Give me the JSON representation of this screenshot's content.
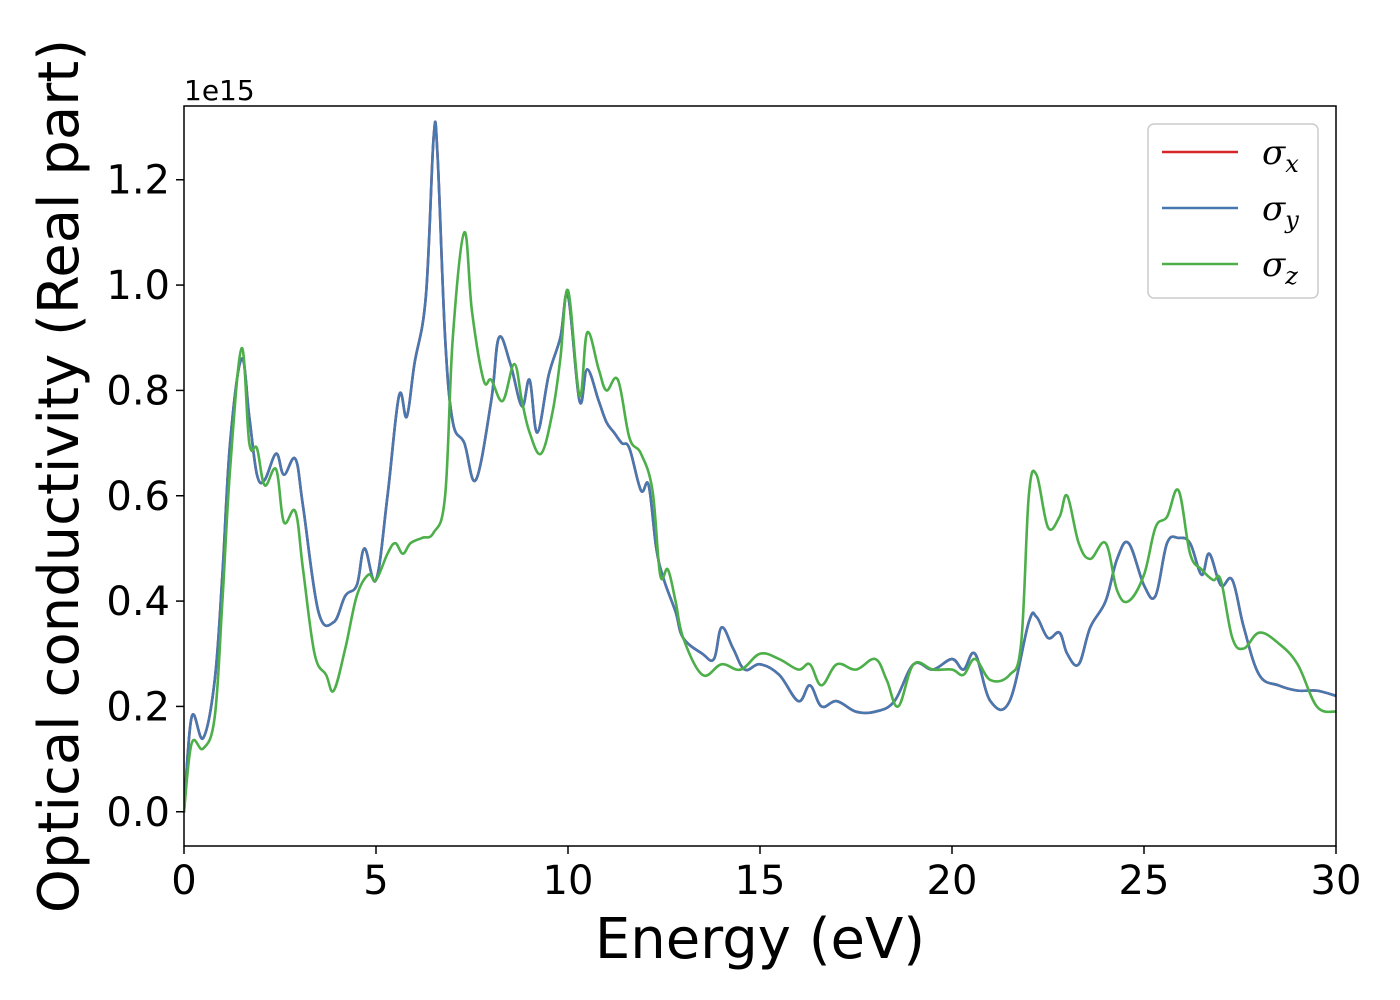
{
  "chart_data": {
    "type": "line",
    "xlabel": "Energy (eV)",
    "ylabel": "Optical conductivity (Real part)",
    "y_offset_label": "1e15",
    "y_scale": 1000000000000000.0,
    "xlim": [
      0,
      30
    ],
    "ylim": [
      -0.065,
      1.34
    ],
    "xticks": [
      0,
      5,
      10,
      15,
      20,
      25,
      30
    ],
    "xtick_labels": [
      "0",
      "5",
      "10",
      "15",
      "20",
      "25",
      "30"
    ],
    "yticks": [
      0.0,
      0.2,
      0.4,
      0.6,
      0.8,
      1.0,
      1.2
    ],
    "ytick_labels": [
      "0.0",
      "0.2",
      "0.4",
      "0.6",
      "0.8",
      "1.0",
      "1.2"
    ],
    "grid": false,
    "legend_position": "top-right",
    "series": [
      {
        "name": "σ",
        "subscript": "x",
        "color": "#d62728",
        "x": [
          0,
          0.2,
          0.5,
          0.8,
          1.0,
          1.2,
          1.5,
          1.7,
          1.9,
          2.1,
          2.4,
          2.6,
          2.9,
          3.1,
          3.5,
          3.9,
          4.2,
          4.5,
          4.7,
          5.0,
          5.3,
          5.6,
          5.8,
          6.0,
          6.3,
          6.5,
          6.6,
          6.8,
          7.0,
          7.3,
          7.6,
          8.0,
          8.2,
          8.5,
          8.8,
          9.0,
          9.2,
          9.5,
          9.8,
          10.0,
          10.3,
          10.5,
          10.8,
          11.0,
          11.2,
          11.4,
          11.6,
          11.9,
          12.1,
          12.3,
          12.5,
          12.8,
          13.0,
          13.5,
          13.8,
          14.0,
          14.3,
          14.6,
          15.0,
          15.5,
          16.0,
          16.3,
          16.6,
          17.0,
          17.5,
          18.0,
          18.5,
          19.0,
          19.5,
          20.0,
          20.3,
          20.6,
          21.0,
          21.5,
          22.0,
          22.2,
          22.5,
          22.8,
          23.0,
          23.3,
          23.6,
          24.0,
          24.3,
          24.6,
          25.0,
          25.3,
          25.6,
          25.9,
          26.2,
          26.5,
          26.7,
          27.0,
          27.3,
          27.6,
          28.0,
          28.5,
          29.0,
          29.5,
          30.0
        ],
        "y": [
          0.0,
          0.18,
          0.14,
          0.25,
          0.45,
          0.7,
          0.86,
          0.75,
          0.64,
          0.63,
          0.68,
          0.64,
          0.67,
          0.58,
          0.38,
          0.36,
          0.41,
          0.43,
          0.5,
          0.44,
          0.6,
          0.79,
          0.75,
          0.85,
          0.98,
          1.28,
          1.25,
          0.9,
          0.74,
          0.7,
          0.63,
          0.78,
          0.9,
          0.85,
          0.77,
          0.82,
          0.72,
          0.83,
          0.9,
          0.98,
          0.78,
          0.84,
          0.78,
          0.74,
          0.72,
          0.7,
          0.69,
          0.61,
          0.62,
          0.5,
          0.44,
          0.38,
          0.33,
          0.3,
          0.29,
          0.35,
          0.31,
          0.27,
          0.28,
          0.26,
          0.21,
          0.24,
          0.2,
          0.21,
          0.19,
          0.19,
          0.21,
          0.28,
          0.27,
          0.29,
          0.27,
          0.3,
          0.21,
          0.21,
          0.36,
          0.37,
          0.33,
          0.34,
          0.3,
          0.28,
          0.35,
          0.4,
          0.48,
          0.51,
          0.43,
          0.41,
          0.51,
          0.52,
          0.51,
          0.45,
          0.49,
          0.43,
          0.44,
          0.35,
          0.26,
          0.24,
          0.23,
          0.23,
          0.22
        ]
      },
      {
        "name": "σ",
        "subscript": "y",
        "color": "#4878b0",
        "x": [
          0,
          0.2,
          0.5,
          0.8,
          1.0,
          1.2,
          1.5,
          1.7,
          1.9,
          2.1,
          2.4,
          2.6,
          2.9,
          3.1,
          3.5,
          3.9,
          4.2,
          4.5,
          4.7,
          5.0,
          5.3,
          5.6,
          5.8,
          6.0,
          6.3,
          6.5,
          6.6,
          6.8,
          7.0,
          7.3,
          7.6,
          8.0,
          8.2,
          8.5,
          8.8,
          9.0,
          9.2,
          9.5,
          9.8,
          10.0,
          10.3,
          10.5,
          10.8,
          11.0,
          11.2,
          11.4,
          11.6,
          11.9,
          12.1,
          12.3,
          12.5,
          12.8,
          13.0,
          13.5,
          13.8,
          14.0,
          14.3,
          14.6,
          15.0,
          15.5,
          16.0,
          16.3,
          16.6,
          17.0,
          17.5,
          18.0,
          18.5,
          19.0,
          19.5,
          20.0,
          20.3,
          20.6,
          21.0,
          21.5,
          22.0,
          22.2,
          22.5,
          22.8,
          23.0,
          23.3,
          23.6,
          24.0,
          24.3,
          24.6,
          25.0,
          25.3,
          25.6,
          25.9,
          26.2,
          26.5,
          26.7,
          27.0,
          27.3,
          27.6,
          28.0,
          28.5,
          29.0,
          29.5,
          30.0
        ],
        "y": [
          0.0,
          0.18,
          0.14,
          0.25,
          0.45,
          0.7,
          0.86,
          0.75,
          0.64,
          0.63,
          0.68,
          0.64,
          0.67,
          0.58,
          0.38,
          0.36,
          0.41,
          0.43,
          0.5,
          0.44,
          0.6,
          0.79,
          0.75,
          0.85,
          0.98,
          1.28,
          1.25,
          0.9,
          0.74,
          0.7,
          0.63,
          0.78,
          0.9,
          0.85,
          0.77,
          0.82,
          0.72,
          0.83,
          0.9,
          0.98,
          0.78,
          0.84,
          0.78,
          0.74,
          0.72,
          0.7,
          0.69,
          0.61,
          0.62,
          0.5,
          0.44,
          0.38,
          0.33,
          0.3,
          0.29,
          0.35,
          0.31,
          0.27,
          0.28,
          0.26,
          0.21,
          0.24,
          0.2,
          0.21,
          0.19,
          0.19,
          0.21,
          0.28,
          0.27,
          0.29,
          0.27,
          0.3,
          0.21,
          0.21,
          0.36,
          0.37,
          0.33,
          0.34,
          0.3,
          0.28,
          0.35,
          0.4,
          0.48,
          0.51,
          0.43,
          0.41,
          0.51,
          0.52,
          0.51,
          0.45,
          0.49,
          0.43,
          0.44,
          0.35,
          0.26,
          0.24,
          0.23,
          0.23,
          0.22
        ]
      },
      {
        "name": "σ",
        "subscript": "z",
        "color": "#4daf4a",
        "x": [
          0,
          0.2,
          0.5,
          0.8,
          1.0,
          1.2,
          1.5,
          1.7,
          1.9,
          2.1,
          2.4,
          2.6,
          2.9,
          3.1,
          3.4,
          3.7,
          3.9,
          4.2,
          4.5,
          4.8,
          5.0,
          5.3,
          5.5,
          5.7,
          5.9,
          6.2,
          6.5,
          6.8,
          7.0,
          7.3,
          7.5,
          7.8,
          8.0,
          8.3,
          8.6,
          8.8,
          9.0,
          9.3,
          9.6,
          9.8,
          10.0,
          10.3,
          10.5,
          10.8,
          11.0,
          11.3,
          11.6,
          11.9,
          12.2,
          12.4,
          12.6,
          12.8,
          13.0,
          13.5,
          14.0,
          14.5,
          15.0,
          15.5,
          16.0,
          16.3,
          16.6,
          17.0,
          17.5,
          18.0,
          18.3,
          18.6,
          19.0,
          19.5,
          20.0,
          20.3,
          20.6,
          21.0,
          21.5,
          21.8,
          22.0,
          22.2,
          22.5,
          22.8,
          23.0,
          23.3,
          23.6,
          24.0,
          24.3,
          24.6,
          25.0,
          25.3,
          25.6,
          25.9,
          26.2,
          26.5,
          26.8,
          27.0,
          27.3,
          27.6,
          28.0,
          28.5,
          29.0,
          29.5,
          30.0
        ],
        "y": [
          0.0,
          0.13,
          0.12,
          0.18,
          0.4,
          0.65,
          0.88,
          0.7,
          0.69,
          0.62,
          0.65,
          0.55,
          0.57,
          0.46,
          0.3,
          0.26,
          0.23,
          0.31,
          0.41,
          0.45,
          0.44,
          0.49,
          0.51,
          0.49,
          0.51,
          0.52,
          0.53,
          0.6,
          0.9,
          1.1,
          0.95,
          0.82,
          0.82,
          0.78,
          0.85,
          0.78,
          0.72,
          0.68,
          0.76,
          0.86,
          0.99,
          0.79,
          0.91,
          0.84,
          0.8,
          0.82,
          0.71,
          0.68,
          0.61,
          0.45,
          0.46,
          0.4,
          0.33,
          0.26,
          0.28,
          0.27,
          0.3,
          0.29,
          0.27,
          0.28,
          0.24,
          0.28,
          0.27,
          0.29,
          0.25,
          0.2,
          0.28,
          0.27,
          0.27,
          0.26,
          0.29,
          0.25,
          0.26,
          0.32,
          0.6,
          0.64,
          0.54,
          0.56,
          0.6,
          0.51,
          0.48,
          0.51,
          0.42,
          0.4,
          0.45,
          0.54,
          0.56,
          0.61,
          0.49,
          0.46,
          0.44,
          0.44,
          0.33,
          0.31,
          0.34,
          0.32,
          0.28,
          0.2,
          0.19
        ]
      }
    ]
  }
}
